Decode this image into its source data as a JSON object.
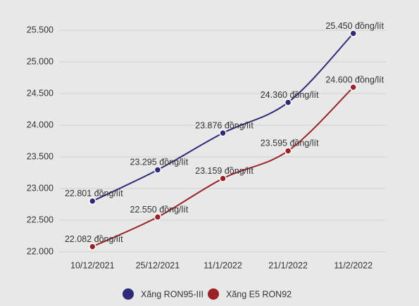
{
  "chart_data": {
    "type": "line",
    "categories": [
      "10/12/2021",
      "25/12/2021",
      "11/1/2022",
      "21/1/2022",
      "11/2/2022"
    ],
    "series": [
      {
        "name": "Xăng RON95-III",
        "color": "#2f2a78",
        "values": [
          22801,
          23295,
          23876,
          24360,
          25450
        ],
        "value_labels": [
          "22.801 đồng/lít",
          "23.295 đồng/lít",
          "23.876 đồng/lít",
          "24.360 đồng/lít",
          "25.450 đồng/lít"
        ]
      },
      {
        "name": "Xăng E5 RON92",
        "color": "#9a2327",
        "values": [
          22082,
          22550,
          23159,
          23595,
          24600
        ],
        "value_labels": [
          "22.082 đồng/lít",
          "22.550 đồng/lít",
          "23.159 đồng/lít",
          "23.595 đồng/lít",
          "24.600 đồng/lít"
        ]
      }
    ],
    "ylim": [
      22000,
      25500
    ],
    "yticks": [
      {
        "value": 22000,
        "label": "22.000"
      },
      {
        "value": 22500,
        "label": "22.500"
      },
      {
        "value": 23000,
        "label": "23.000"
      },
      {
        "value": 23500,
        "label": "23.500"
      },
      {
        "value": 24000,
        "label": "24.000"
      },
      {
        "value": 24500,
        "label": "24.500"
      },
      {
        "value": 25000,
        "label": "25.000"
      },
      {
        "value": 25500,
        "label": "25.500"
      }
    ],
    "grid": true
  }
}
